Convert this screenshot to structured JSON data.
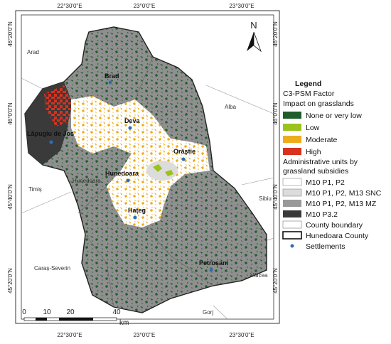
{
  "map": {
    "graticule": {
      "top": [
        "22°30'0\"E",
        "23°0'0\"E",
        "23°30'0\"E"
      ],
      "bottom": [
        "22°30'0\"E",
        "23°0'0\"E",
        "23°30'0\"E"
      ],
      "left": [
        "46°20'0\"N",
        "46°0'0\"N",
        "45°40'0\"N",
        "45°20'0\"N"
      ],
      "right": [
        "46°20'0\"N",
        "46°0'0\"N",
        "45°40'0\"N",
        "45°20'0\"N"
      ]
    },
    "neighbors": [
      "Arad",
      "Alba",
      "Timiș",
      "Sibiu",
      "Caraș-Severin",
      "Vâlcea",
      "Gorj",
      "Hunedoara"
    ],
    "settlements": [
      "Brad",
      "Deva",
      "Orăștie",
      "Lăpugiu de Jos",
      "Hunedoara",
      "Hațeg",
      "Petroșani"
    ],
    "north": "N",
    "scale_bar": {
      "labels": [
        "0",
        "10",
        "20",
        "40"
      ],
      "unit": "km"
    }
  },
  "legend": {
    "title": "Legend",
    "factor_title": "C3-PSM Factor",
    "factor_subtitle": "Impact on grasslands",
    "impact": [
      "None or very low",
      "Low",
      "Moderate",
      "High"
    ],
    "admin_title": [
      "Administrative units by",
      "grassland subsidies"
    ],
    "admin": [
      "M10 P1, P2",
      "M10 P1, P2, M13 SNC",
      "M10 P1, P2, M13 MZ",
      "M10 P3.2"
    ],
    "boundaries": [
      "County boundary",
      "Hunedoara County"
    ],
    "points": [
      "Settlements"
    ]
  }
}
